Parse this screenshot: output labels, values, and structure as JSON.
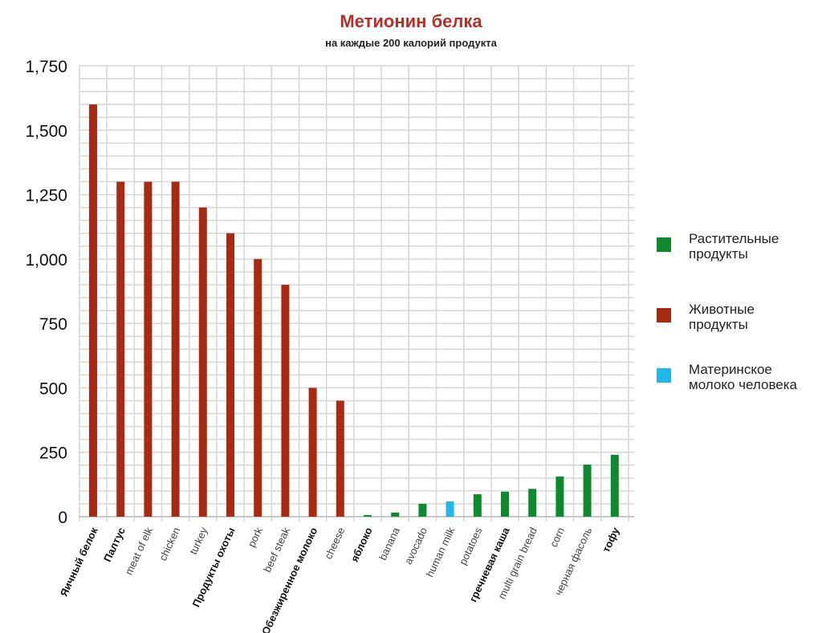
{
  "chart_data": {
    "type": "bar",
    "title": "Метионин белка",
    "subtitle": "на каждые 200 калорий продукта",
    "xlabel": "",
    "ylabel": "",
    "ylim": [
      0,
      1750
    ],
    "yticks": [
      "0",
      "250",
      "500",
      "750",
      "1,000",
      "1,250",
      "1,500",
      "1,750"
    ],
    "grid": true,
    "legend_position": "right",
    "categories": [
      "Яичный белок",
      "Палтус",
      "meat of elk",
      "chicken",
      "turkey",
      "Продукты охоты",
      "pork",
      "beef steak",
      "Обезжиренное молоко",
      "cheese",
      "яблоко",
      "banana",
      "avocado",
      "human milk",
      "potatoes",
      "гречневая каша",
      "multi grain bread",
      "corn",
      "черная фасоль",
      "тофу"
    ],
    "bold_categories": [
      "Яичный белок",
      "Палтус",
      "Продукты охоты",
      "Обезжиренное молоко",
      "яблоко",
      "гречневая каша",
      "тофу"
    ],
    "values": [
      1600,
      1300,
      1300,
      1300,
      1200,
      1100,
      1000,
      900,
      500,
      450,
      6,
      16,
      50,
      59,
      87,
      97,
      108,
      156,
      202,
      240
    ],
    "groups": [
      "animal",
      "animal",
      "animal",
      "animal",
      "animal",
      "animal",
      "animal",
      "animal",
      "animal",
      "animal",
      "plant",
      "plant",
      "plant",
      "human",
      "plant",
      "plant",
      "plant",
      "plant",
      "plant",
      "plant"
    ],
    "legend": [
      {
        "key": "plant",
        "label": "Растительные продукты",
        "color": "#0e8a2e"
      },
      {
        "key": "animal",
        "label": "Животные продукты",
        "color": "#a82a12"
      },
      {
        "key": "human",
        "label": "Материнское молоко человека",
        "color": "#1fb8e8"
      }
    ]
  }
}
